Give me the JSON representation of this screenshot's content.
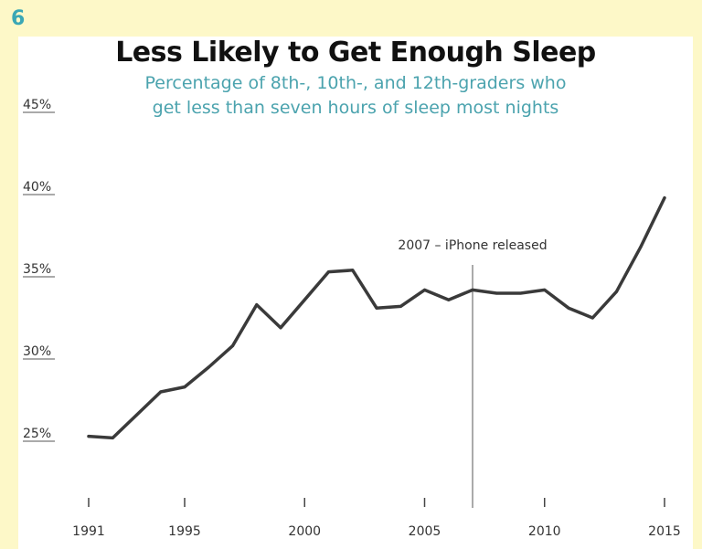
{
  "badge": "6",
  "chart_data": {
    "type": "line",
    "title": "Less Likely to Get Enough Sleep",
    "subtitle_lines": [
      "Percentage of 8th-, 10th-, and 12th-graders who",
      "get less than seven hours of sleep most nights"
    ],
    "xlabel": "",
    "ylabel": "",
    "xlim": [
      1991,
      2015
    ],
    "ylim": [
      20,
      45
    ],
    "y_ticks": [
      25,
      30,
      35,
      40,
      45
    ],
    "y_tick_labels": [
      "25%",
      "30%",
      "35%",
      "40%",
      "45%"
    ],
    "x_ticks": [
      1991,
      1995,
      2000,
      2005,
      2010,
      2015
    ],
    "x_tick_labels": [
      "1991",
      "1995",
      "2000",
      "2005",
      "2010",
      "2015"
    ],
    "grid": false,
    "line_color": "#3a3a3a",
    "series": [
      {
        "x": [
          1991,
          1992,
          1993,
          1994,
          1995,
          1996,
          1997,
          1998,
          1999,
          2000,
          2001,
          2002,
          2003,
          2004,
          2005,
          2006,
          2007,
          2008,
          2009,
          2010,
          2011,
          2012,
          2013,
          2014,
          2015
        ],
        "y": [
          25.3,
          25.2,
          26.6,
          28.0,
          28.3,
          29.5,
          30.8,
          33.3,
          31.9,
          33.6,
          35.3,
          35.4,
          33.1,
          33.2,
          34.2,
          33.6,
          34.2,
          34.0,
          34.0,
          34.2,
          33.1,
          32.5,
          34.1,
          36.8,
          39.8
        ]
      }
    ],
    "annotations": [
      {
        "x": 2007,
        "text": "2007 – iPhone released"
      }
    ]
  }
}
